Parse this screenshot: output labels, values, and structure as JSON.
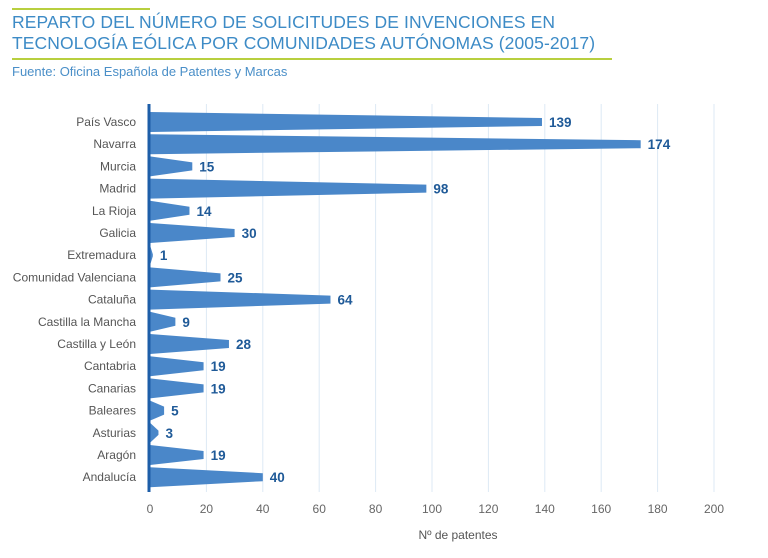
{
  "header": {
    "title_line1": "REPARTO DEL NÚMERO DE SOLICITUDES DE INVENCIONES EN",
    "title_line2": "TECNOLOGÍA EÓLICA POR COMUNIDADES AUTÓNOMAS (2005-2017)",
    "source": "Fuente: Oficina Española de Patentes y Marcas"
  },
  "colors": {
    "bar": "#4a87c9",
    "axis": "#1d5ea8",
    "value_label": "#1f5a98",
    "title": "#3d8bc6",
    "accent_rule": "#b8cf3f",
    "grid": "#dde9f4"
  },
  "chart_data": {
    "type": "bar",
    "orientation": "horizontal",
    "title": "REPARTO DEL NÚMERO DE SOLICITUDES DE INVENCIONES EN TECNOLOGÍA EÓLICA POR COMUNIDADES AUTÓNOMAS (2005-2017)",
    "xlabel": "Nº de patentes",
    "ylabel": "",
    "xlim": [
      0,
      200
    ],
    "xticks": [
      0,
      20,
      40,
      60,
      80,
      100,
      120,
      140,
      160,
      180,
      200
    ],
    "grid": true,
    "categories": [
      "País Vasco",
      "Navarra",
      "Murcia",
      "Madrid",
      "La Rioja",
      "Galicia",
      "Extremadura",
      "Comunidad Valenciana",
      "Cataluña",
      "Castilla la Mancha",
      "Castilla y León",
      "Cantabria",
      "Canarias",
      "Baleares",
      "Asturias",
      "Aragón",
      "Andalucía"
    ],
    "values": [
      139,
      174,
      15,
      98,
      14,
      30,
      1,
      25,
      64,
      9,
      28,
      19,
      19,
      5,
      3,
      19,
      40
    ]
  }
}
